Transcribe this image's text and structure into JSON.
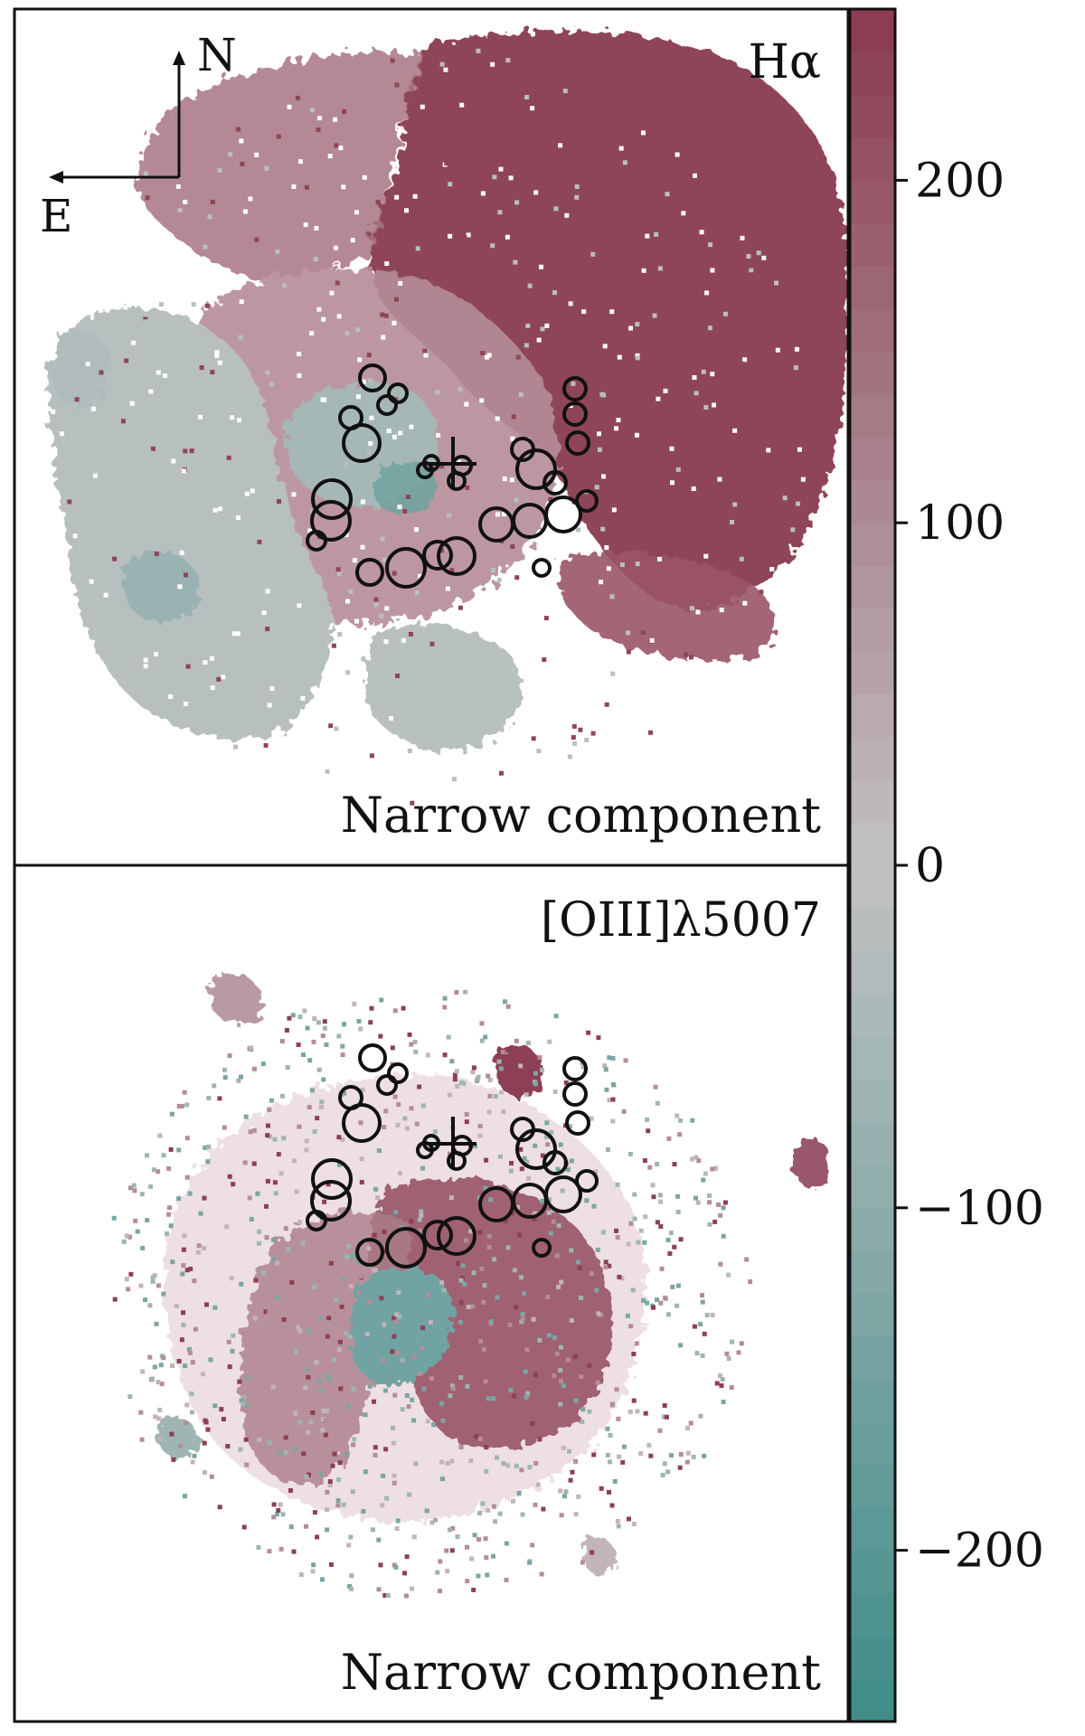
{
  "chart_data": [
    {
      "type": "heatmap",
      "line_label": "Hα",
      "component_label": "Narrow component",
      "compass": {
        "north_label": "N",
        "east_label": "E"
      }
    },
    {
      "type": "heatmap",
      "line_label": "[OIII]λ5007",
      "component_label": "Narrow component"
    }
  ],
  "colorbar": {
    "ticks": [
      {
        "value": 200,
        "label": "200"
      },
      {
        "value": 100,
        "label": "100"
      },
      {
        "value": 0,
        "label": "0"
      },
      {
        "value": -100,
        "label": "−100"
      },
      {
        "value": -200,
        "label": "−200"
      }
    ],
    "vmin": -250,
    "vmax": 250,
    "color_low": "#3e8c88",
    "color_mid": "#c2c2c2",
    "color_high": "#8b3a50"
  }
}
